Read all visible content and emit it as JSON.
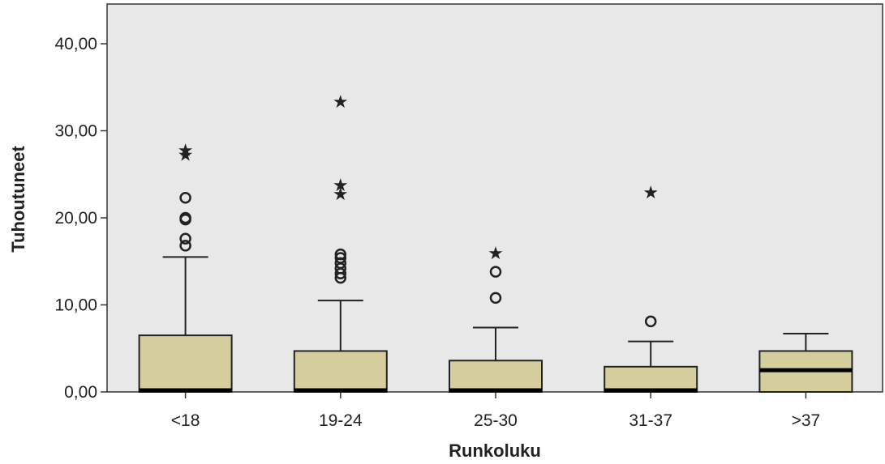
{
  "chart_data": {
    "type": "boxplot",
    "xlabel": "Runkoluku",
    "ylabel": "Tuhoutuneet",
    "ylim": [
      0,
      44.5
    ],
    "yticks": [
      0,
      10,
      20,
      30,
      40
    ],
    "ytick_labels": [
      "0,00",
      "10,00",
      "20,00",
      "30,00",
      "40,00"
    ],
    "grid": false,
    "plot_background": "#e8e8e8",
    "box_color": "#d3ce9c",
    "categories": [
      "<18",
      "19-24",
      "25-30",
      "31-37",
      ">37"
    ],
    "boxes": [
      {
        "category": "<18",
        "whisker_low": 0,
        "q1": 0,
        "median": 0,
        "q3": 6.5,
        "whisker_high": 15.5,
        "outliers_circle": [
          16.8,
          17.6,
          19.8,
          20.0,
          22.3
        ],
        "outliers_extreme": [
          27.3,
          27.8
        ]
      },
      {
        "category": "19-24",
        "whisker_low": 0,
        "q1": 0,
        "median": 0,
        "q3": 4.7,
        "whisker_high": 10.5,
        "outliers_circle": [
          13.1,
          13.6,
          14.2,
          14.8,
          15.4,
          15.8
        ],
        "outliers_extreme": [
          22.8,
          23.8,
          33.4
        ]
      },
      {
        "category": "25-30",
        "whisker_low": 0,
        "q1": 0,
        "median": 0,
        "q3": 3.6,
        "whisker_high": 7.4,
        "outliers_circle": [
          10.8,
          13.8
        ],
        "outliers_extreme": [
          16.0
        ]
      },
      {
        "category": "31-37",
        "whisker_low": 0,
        "q1": 0,
        "median": 0,
        "q3": 2.9,
        "whisker_high": 5.8,
        "outliers_circle": [
          8.1
        ],
        "outliers_extreme": [
          23.0
        ]
      },
      {
        "category": ">37",
        "whisker_low": 0,
        "q1": 0,
        "median": 2.5,
        "q3": 4.7,
        "whisker_high": 6.7,
        "outliers_circle": [],
        "outliers_extreme": []
      }
    ]
  }
}
